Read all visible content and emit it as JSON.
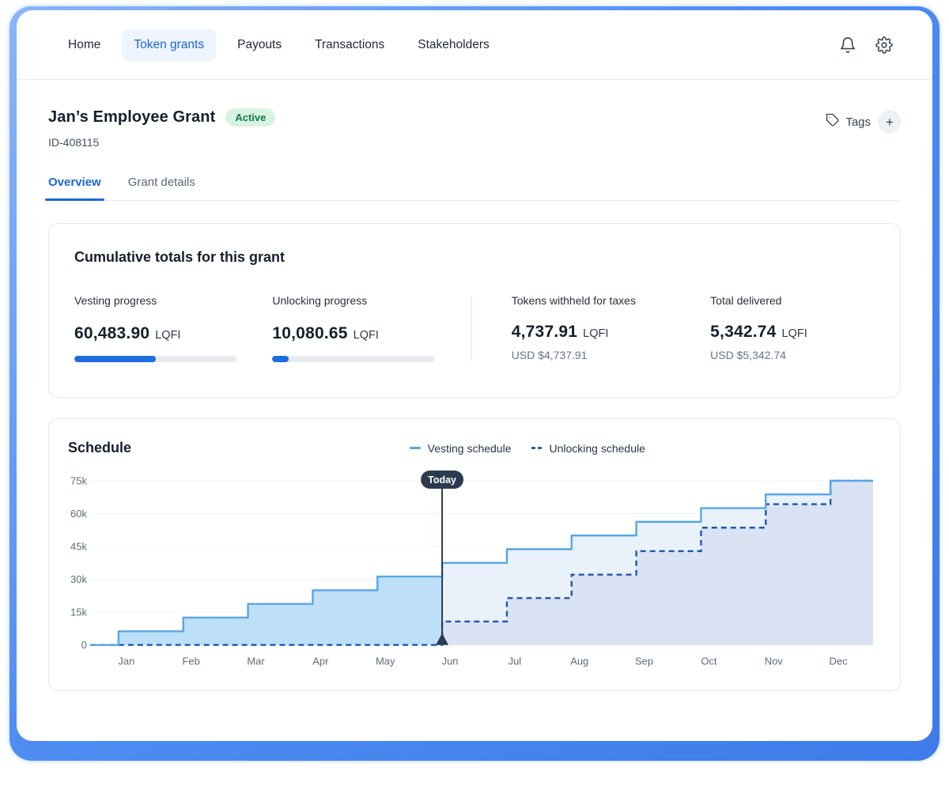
{
  "nav": {
    "items": [
      {
        "label": "Home",
        "active": false
      },
      {
        "label": "Token grants",
        "active": true
      },
      {
        "label": "Payouts",
        "active": false
      },
      {
        "label": "Transactions",
        "active": false
      },
      {
        "label": "Stakeholders",
        "active": false
      }
    ]
  },
  "header": {
    "title": "Jan’s Employee Grant",
    "status": "Active",
    "grant_id": "ID-408115",
    "tags_label": "Tags",
    "add_tag_label": "+"
  },
  "tabs": [
    {
      "label": "Overview",
      "active": true
    },
    {
      "label": "Grant details",
      "active": false
    }
  ],
  "totals_card": {
    "title": "Cumulative totals for this grant",
    "metrics": [
      {
        "label": "Vesting progress",
        "value": "60,483.90",
        "unit": "LQFI",
        "progress_pct": 50
      },
      {
        "label": "Unlocking progress",
        "value": "10,080.65",
        "unit": "LQFI",
        "progress_pct": 10
      },
      {
        "label": "Tokens withheld for taxes",
        "value": "4,737.91",
        "unit": "LQFI",
        "usd": "USD $4,737.91"
      },
      {
        "label": "Total delivered",
        "value": "5,342.74",
        "unit": "LQFI",
        "usd": "USD $5,342.74"
      }
    ]
  },
  "schedule_card": {
    "title": "Schedule",
    "legend": [
      {
        "label": "Vesting schedule",
        "style": "solid"
      },
      {
        "label": "Unlocking schedule",
        "style": "dashed"
      }
    ]
  },
  "chart_data": {
    "type": "area",
    "subtype": "step",
    "unit": "LQFI",
    "categories": [
      "Jan",
      "Feb",
      "Mar",
      "Apr",
      "May",
      "Jun",
      "Jul",
      "Aug",
      "Sep",
      "Oct",
      "Nov",
      "Dec"
    ],
    "y_tick_labels": [
      "0",
      "15k",
      "30k",
      "45k",
      "60k",
      "75k"
    ],
    "y_ticks": [
      0,
      15000,
      30000,
      45000,
      60000,
      75000
    ],
    "ylim": [
      0,
      75000
    ],
    "grid": true,
    "legend_position": "top",
    "today_label": "Today",
    "today_month_index": 5,
    "series": [
      {
        "name": "Vesting schedule",
        "style": "solid",
        "values": [
          6250,
          12500,
          18750,
          25000,
          31250,
          37500,
          43750,
          50000,
          56250,
          62500,
          68750,
          75000
        ]
      },
      {
        "name": "Unlocking schedule",
        "style": "dashed",
        "values": [
          0,
          0,
          0,
          0,
          0,
          10714,
          21429,
          32143,
          42857,
          53571,
          64286,
          75000
        ]
      }
    ]
  },
  "colors": {
    "accent_blue": "#1d6ce0",
    "nav_active_bg": "#edf4fe",
    "nav_active_text": "#1a66d9",
    "badge_bg": "#d9f3e2",
    "badge_text": "#0e7a4e",
    "vesting_line": "#56a6e8",
    "unlocking_line": "#1e56b0",
    "area_before_today": "#bedff8",
    "area_after_today": "#e9f1fb",
    "area_unlock_overlap": "#d9e3f3",
    "today_marker": "#2c3a4f",
    "gridline": "#edf1f6",
    "baseline": "#e2e8f0"
  }
}
